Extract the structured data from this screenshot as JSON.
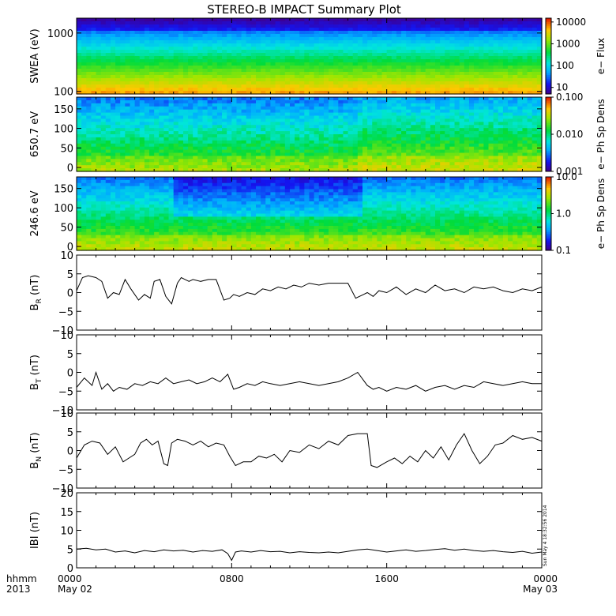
{
  "title": "STEREO-B IMPACT Summary Plot",
  "time_axis": {
    "corner_top": "hhmm",
    "corner_bottom": "2013",
    "ticks": [
      {
        "hhmm": "0000",
        "date": "May 02",
        "hour": 0
      },
      {
        "hhmm": "0800",
        "date": "",
        "hour": 8
      },
      {
        "hhmm": "1600",
        "date": "",
        "hour": 16
      },
      {
        "hhmm": "0000",
        "date": "May 03",
        "hour": 24
      }
    ]
  },
  "stamp": "Sun May  4 18:32:56 2014",
  "chart_data": [
    {
      "type": "heatmap",
      "id": "swea",
      "ylabel": "SWEA (eV)",
      "yscale": "log",
      "ylim": [
        90,
        1800
      ],
      "yticks": [
        {
          "v": 100,
          "label": "100"
        },
        {
          "v": 1000,
          "label": "1000"
        }
      ],
      "colorbar": {
        "label": "e− Flux",
        "scale": "log",
        "range": [
          5,
          15000
        ],
        "ticks": [
          {
            "v": 10,
            "label": "10"
          },
          {
            "v": 100,
            "label": "100"
          },
          {
            "v": 1000,
            "label": "1000"
          },
          {
            "v": 10000,
            "label": "10000"
          }
        ]
      }
    },
    {
      "type": "heatmap",
      "id": "pad650",
      "ylabel": "650.7 eV",
      "ylim": [
        -10,
        180
      ],
      "yticks": [
        {
          "v": 0,
          "label": "0"
        },
        {
          "v": 50,
          "label": "50"
        },
        {
          "v": 100,
          "label": "100"
        },
        {
          "v": 150,
          "label": "150"
        }
      ],
      "colorbar": {
        "label": "e− Ph Sp Dens",
        "scale": "log",
        "range": [
          0.001,
          0.1
        ],
        "ticks": [
          {
            "v": 0.001,
            "label": "0.001"
          },
          {
            "v": 0.01,
            "label": "0.010"
          },
          {
            "v": 0.1,
            "label": "0.100"
          }
        ]
      }
    },
    {
      "type": "heatmap",
      "id": "pad246",
      "ylabel": "246.6 eV",
      "ylim": [
        -10,
        180
      ],
      "yticks": [
        {
          "v": 0,
          "label": "0"
        },
        {
          "v": 50,
          "label": "50"
        },
        {
          "v": 100,
          "label": "100"
        },
        {
          "v": 150,
          "label": "150"
        }
      ],
      "colorbar": {
        "label": "e− Ph Sp Dens",
        "scale": "log",
        "range": [
          0.1,
          10
        ],
        "ticks": [
          {
            "v": 0.1,
            "label": "0.1"
          },
          {
            "v": 1,
            "label": "1.0"
          },
          {
            "v": 10,
            "label": "10.0"
          }
        ]
      }
    },
    {
      "type": "line",
      "id": "br",
      "ylabel_main": "B",
      "ylabel_sub": "R",
      "ylabel_unit": " (nT)",
      "ylim": [
        -10,
        10
      ],
      "yticks": [
        {
          "v": -10,
          "label": "−10"
        },
        {
          "v": -5,
          "label": "−5"
        },
        {
          "v": 0,
          "label": "0"
        },
        {
          "v": 5,
          "label": "5"
        },
        {
          "v": 10,
          "label": "10"
        }
      ],
      "x_hours": [
        0,
        0.3,
        0.6,
        1.0,
        1.3,
        1.6,
        1.9,
        2.2,
        2.5,
        2.8,
        3.2,
        3.5,
        3.8,
        4.0,
        4.3,
        4.6,
        4.9,
        5.2,
        5.4,
        5.6,
        5.8,
        6.0,
        6.4,
        6.8,
        7.2,
        7.6,
        7.9,
        8.1,
        8.4,
        8.8,
        9.2,
        9.6,
        10.0,
        10.4,
        10.8,
        11.2,
        11.6,
        12.0,
        12.5,
        13.0,
        13.5,
        14.0,
        14.4,
        14.8,
        15.0,
        15.3,
        15.6,
        16.0,
        16.5,
        17.0,
        17.5,
        18.0,
        18.5,
        19.0,
        19.5,
        20.0,
        20.5,
        21.0,
        21.5,
        22.0,
        22.5,
        23.0,
        23.5,
        24.0
      ],
      "values": [
        0.5,
        4.0,
        4.5,
        4.0,
        3.0,
        -1.5,
        0.0,
        -0.5,
        3.5,
        1.0,
        -2.0,
        -0.5,
        -1.5,
        3.0,
        3.5,
        -1.0,
        -3.0,
        2.5,
        4.0,
        3.5,
        3.0,
        3.5,
        3.0,
        3.5,
        3.5,
        -2.0,
        -1.5,
        -0.5,
        -1.0,
        0.0,
        -0.5,
        1.0,
        0.5,
        1.5,
        1.0,
        2.0,
        1.5,
        2.5,
        2.0,
        2.5,
        2.5,
        2.5,
        -1.5,
        -0.5,
        0.0,
        -1.0,
        0.5,
        0.0,
        1.5,
        -0.5,
        1.0,
        0.0,
        2.0,
        0.5,
        1.0,
        0.0,
        1.5,
        1.0,
        1.5,
        0.5,
        0.0,
        1.0,
        0.5,
        1.5
      ]
    },
    {
      "type": "line",
      "id": "bt",
      "ylabel_main": "B",
      "ylabel_sub": "T",
      "ylabel_unit": " (nT)",
      "ylim": [
        -10,
        10
      ],
      "yticks": [
        {
          "v": -10,
          "label": "−10"
        },
        {
          "v": -5,
          "label": "−5"
        },
        {
          "v": 0,
          "label": "0"
        },
        {
          "v": 5,
          "label": "5"
        },
        {
          "v": 10,
          "label": "10"
        }
      ],
      "x_hours": [
        0,
        0.4,
        0.8,
        1.0,
        1.3,
        1.6,
        1.9,
        2.2,
        2.6,
        3.0,
        3.4,
        3.8,
        4.2,
        4.6,
        5.0,
        5.4,
        5.8,
        6.2,
        6.6,
        7.0,
        7.4,
        7.8,
        8.1,
        8.4,
        8.8,
        9.2,
        9.6,
        10.0,
        10.5,
        11.0,
        11.5,
        12.0,
        12.5,
        13.0,
        13.5,
        14.0,
        14.5,
        15.0,
        15.3,
        15.6,
        16.0,
        16.5,
        17.0,
        17.5,
        18.0,
        18.5,
        19.0,
        19.5,
        20.0,
        20.5,
        21.0,
        21.5,
        22.0,
        22.5,
        23.0,
        23.5,
        24.0
      ],
      "values": [
        -4.0,
        -1.5,
        -3.5,
        0.0,
        -4.5,
        -3.0,
        -5.0,
        -4.0,
        -4.5,
        -3.0,
        -3.5,
        -2.5,
        -3.0,
        -1.5,
        -3.0,
        -2.5,
        -2.0,
        -3.0,
        -2.5,
        -1.5,
        -2.5,
        -0.5,
        -4.5,
        -4.0,
        -3.0,
        -3.5,
        -2.5,
        -3.0,
        -3.5,
        -3.0,
        -2.5,
        -3.0,
        -3.5,
        -3.0,
        -2.5,
        -1.5,
        0.0,
        -3.5,
        -4.5,
        -4.0,
        -5.0,
        -4.0,
        -4.5,
        -3.5,
        -5.0,
        -4.0,
        -3.5,
        -4.5,
        -3.5,
        -4.0,
        -2.5,
        -3.0,
        -3.5,
        -3.0,
        -2.5,
        -3.0,
        -3.0
      ]
    },
    {
      "type": "line",
      "id": "bn",
      "ylabel_main": "B",
      "ylabel_sub": "N",
      "ylabel_unit": " (nT)",
      "ylim": [
        -10,
        10
      ],
      "yticks": [
        {
          "v": -10,
          "label": "−10"
        },
        {
          "v": -5,
          "label": "−5"
        },
        {
          "v": 0,
          "label": "0"
        },
        {
          "v": 5,
          "label": "5"
        },
        {
          "v": 10,
          "label": "10"
        }
      ],
      "x_hours": [
        0,
        0.4,
        0.8,
        1.2,
        1.6,
        2.0,
        2.4,
        2.7,
        3.0,
        3.3,
        3.6,
        3.9,
        4.2,
        4.5,
        4.7,
        4.9,
        5.2,
        5.6,
        6.0,
        6.4,
        6.8,
        7.2,
        7.6,
        7.9,
        8.2,
        8.6,
        9.0,
        9.4,
        9.8,
        10.2,
        10.6,
        11.0,
        11.5,
        12.0,
        12.5,
        13.0,
        13.5,
        14.0,
        14.5,
        15.0,
        15.2,
        15.5,
        16.0,
        16.4,
        16.8,
        17.2,
        17.6,
        18.0,
        18.4,
        18.8,
        19.2,
        19.6,
        20.0,
        20.4,
        20.8,
        21.2,
        21.6,
        22.0,
        22.5,
        23.0,
        23.5,
        24.0
      ],
      "values": [
        -2.0,
        1.5,
        2.5,
        2.0,
        -1.0,
        1.0,
        -3.0,
        -2.0,
        -1.0,
        2.0,
        3.0,
        1.5,
        2.5,
        -3.5,
        -4.0,
        2.0,
        3.0,
        2.5,
        1.5,
        2.5,
        1.0,
        2.0,
        1.5,
        -1.5,
        -4.0,
        -3.0,
        -3.0,
        -1.5,
        -2.0,
        -1.0,
        -3.0,
        0.0,
        -0.5,
        1.5,
        0.5,
        2.5,
        1.5,
        4.0,
        4.5,
        4.5,
        -4.0,
        -4.5,
        -3.0,
        -2.0,
        -3.5,
        -1.5,
        -3.0,
        0.0,
        -2.0,
        1.0,
        -2.5,
        1.5,
        4.5,
        0.0,
        -3.5,
        -1.5,
        1.5,
        2.0,
        4.0,
        3.0,
        3.5,
        2.5
      ]
    },
    {
      "type": "line",
      "id": "bmag",
      "ylabel_main": "IBI",
      "ylabel_sub": "",
      "ylabel_unit": " (nT)",
      "ylim": [
        0,
        20
      ],
      "yticks": [
        {
          "v": 0,
          "label": "0"
        },
        {
          "v": 5,
          "label": "5"
        },
        {
          "v": 10,
          "label": "10"
        },
        {
          "v": 15,
          "label": "15"
        },
        {
          "v": 20,
          "label": "20"
        }
      ],
      "x_hours": [
        0,
        0.5,
        1.0,
        1.5,
        2.0,
        2.5,
        3.0,
        3.5,
        4.0,
        4.5,
        5.0,
        5.5,
        6.0,
        6.5,
        7.0,
        7.5,
        7.8,
        8.0,
        8.2,
        8.5,
        9.0,
        9.5,
        10.0,
        10.5,
        11.0,
        11.5,
        12.0,
        12.5,
        13.0,
        13.5,
        14.0,
        14.5,
        15.0,
        15.5,
        16.0,
        16.5,
        17.0,
        17.5,
        18.0,
        18.5,
        19.0,
        19.5,
        20.0,
        20.5,
        21.0,
        21.5,
        22.0,
        22.5,
        23.0,
        23.5,
        24.0
      ],
      "values": [
        5.0,
        5.2,
        4.8,
        5.0,
        4.2,
        4.5,
        4.0,
        4.6,
        4.3,
        4.8,
        4.5,
        4.7,
        4.2,
        4.6,
        4.4,
        4.8,
        3.8,
        2.0,
        4.2,
        4.5,
        4.2,
        4.6,
        4.3,
        4.4,
        4.0,
        4.3,
        4.1,
        4.0,
        4.2,
        4.0,
        4.4,
        4.8,
        5.0,
        4.6,
        4.2,
        4.5,
        4.8,
        4.4,
        4.6,
        4.9,
        5.1,
        4.7,
        5.0,
        4.6,
        4.4,
        4.6,
        4.3,
        4.1,
        4.4,
        3.9,
        4.2
      ]
    }
  ]
}
